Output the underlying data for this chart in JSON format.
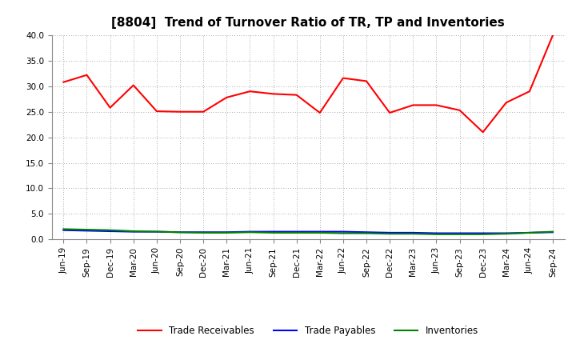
{
  "title": "[8804]  Trend of Turnover Ratio of TR, TP and Inventories",
  "x_labels": [
    "Jun-19",
    "Sep-19",
    "Dec-19",
    "Mar-20",
    "Jun-20",
    "Sep-20",
    "Dec-20",
    "Mar-21",
    "Jun-21",
    "Sep-21",
    "Dec-21",
    "Mar-22",
    "Jun-22",
    "Sep-22",
    "Dec-22",
    "Mar-23",
    "Jun-23",
    "Sep-23",
    "Dec-23",
    "Mar-24",
    "Jun-24",
    "Sep-24"
  ],
  "trade_receivables": [
    30.8,
    32.2,
    25.8,
    30.2,
    25.1,
    25.0,
    25.0,
    27.8,
    29.0,
    28.5,
    28.3,
    24.8,
    31.6,
    31.0,
    24.8,
    26.3,
    26.3,
    25.3,
    21.0,
    26.8,
    29.0,
    40.0
  ],
  "trade_payables": [
    1.8,
    1.7,
    1.6,
    1.5,
    1.5,
    1.4,
    1.4,
    1.4,
    1.5,
    1.5,
    1.5,
    1.5,
    1.5,
    1.4,
    1.3,
    1.3,
    1.2,
    1.2,
    1.2,
    1.2,
    1.3,
    1.4
  ],
  "inventories": [
    2.0,
    1.9,
    1.8,
    1.6,
    1.5,
    1.4,
    1.3,
    1.3,
    1.4,
    1.3,
    1.3,
    1.3,
    1.2,
    1.2,
    1.1,
    1.1,
    1.0,
    1.0,
    1.0,
    1.1,
    1.3,
    1.5
  ],
  "tr_color": "#FF0000",
  "tp_color": "#0000FF",
  "inv_color": "#008000",
  "ylim": [
    0.0,
    40.0
  ],
  "yticks": [
    0.0,
    5.0,
    10.0,
    15.0,
    20.0,
    25.0,
    30.0,
    35.0,
    40.0
  ],
  "background_color": "#FFFFFF",
  "grid_color": "#AAAAAA",
  "title_fontsize": 11,
  "tick_fontsize": 7.5,
  "legend_labels": [
    "Trade Receivables",
    "Trade Payables",
    "Inventories"
  ]
}
